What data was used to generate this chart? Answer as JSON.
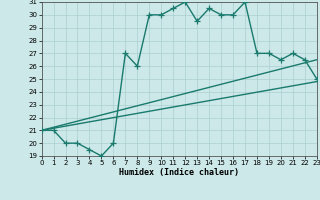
{
  "line1_x": [
    0,
    1,
    2,
    3,
    4,
    5,
    6,
    7,
    8,
    9,
    10,
    11,
    12,
    13,
    14,
    15,
    16,
    17,
    18,
    19,
    20,
    21,
    22,
    23
  ],
  "line1_y": [
    21,
    21,
    20,
    20,
    19.5,
    19,
    20,
    27,
    26,
    30,
    30,
    30.5,
    31,
    29.5,
    30.5,
    30,
    30,
    31,
    27,
    27,
    26.5,
    27,
    26.5,
    25
  ],
  "line2_x": [
    0,
    23
  ],
  "line2_y": [
    21,
    24.8
  ],
  "line3_x": [
    0,
    23
  ],
  "line3_y": [
    21,
    26.5
  ],
  "line_color": "#1a7a6e",
  "bg_color": "#cce8e8",
  "grid_color": "#aacfcf",
  "xlabel": "Humidex (Indice chaleur)",
  "ylim": [
    19,
    31
  ],
  "xlim": [
    0,
    23
  ],
  "yticks": [
    19,
    20,
    21,
    22,
    23,
    24,
    25,
    26,
    27,
    28,
    29,
    30,
    31
  ],
  "xticks": [
    0,
    1,
    2,
    3,
    4,
    5,
    6,
    7,
    8,
    9,
    10,
    11,
    12,
    13,
    14,
    15,
    16,
    17,
    18,
    19,
    20,
    21,
    22,
    23
  ],
  "marker": "+",
  "markersize": 4,
  "linewidth": 1.0
}
